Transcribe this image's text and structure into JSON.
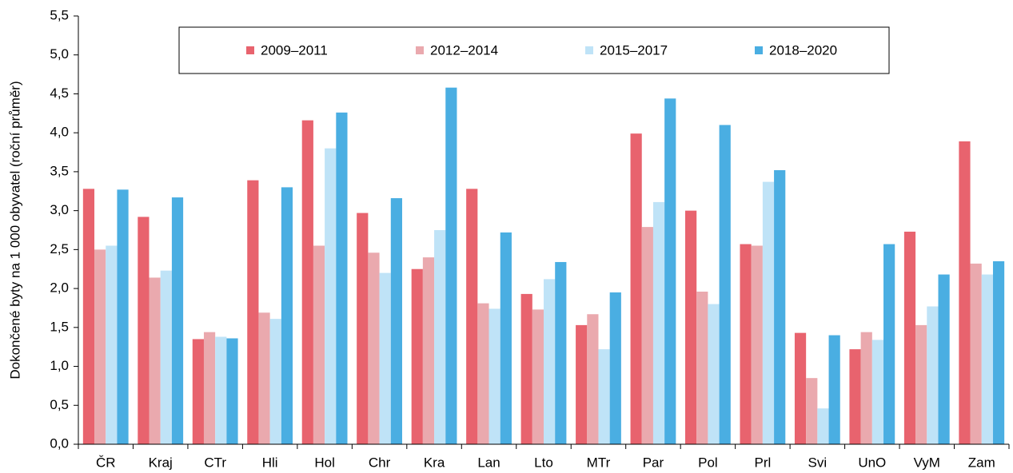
{
  "chart_data": {
    "type": "bar",
    "y_label": "Dokončené byty na 1 000 obyvatel (roční průměr)",
    "categories": [
      "ČR",
      "Kraj",
      "CTr",
      "Hli",
      "Hol",
      "Chr",
      "Kra",
      "Lan",
      "Lto",
      "MTr",
      "Par",
      "Pol",
      "Prl",
      "Svi",
      "UnO",
      "VyM",
      "Zam"
    ],
    "series": [
      {
        "name": "2009–2011",
        "color": "#e8636e",
        "values": [
          3.28,
          2.92,
          1.35,
          3.39,
          4.16,
          2.97,
          2.25,
          3.28,
          1.93,
          1.53,
          3.99,
          3.0,
          2.57,
          1.43,
          1.22,
          2.73,
          3.89
        ]
      },
      {
        "name": "2012–2014",
        "color": "#eaa9ae",
        "values": [
          2.5,
          2.14,
          1.44,
          1.69,
          2.55,
          2.46,
          2.4,
          1.81,
          1.73,
          1.67,
          2.79,
          1.96,
          2.55,
          0.85,
          1.44,
          1.53,
          2.32
        ]
      },
      {
        "name": "2015–2017",
        "color": "#bfe3f7",
        "values": [
          2.55,
          2.23,
          1.38,
          1.61,
          3.8,
          2.2,
          2.75,
          1.74,
          2.12,
          1.22,
          3.11,
          1.8,
          3.37,
          0.46,
          1.34,
          1.77,
          2.18
        ]
      },
      {
        "name": "2018–2020",
        "color": "#4aaee2",
        "values": [
          3.27,
          3.17,
          1.36,
          3.3,
          4.26,
          3.16,
          4.58,
          2.72,
          2.34,
          1.95,
          4.44,
          4.1,
          3.52,
          1.4,
          2.57,
          2.18,
          2.35
        ]
      }
    ],
    "ylim": [
      0,
      5.5
    ],
    "yticks": [
      {
        "value": 0,
        "label": "0,0"
      },
      {
        "value": 0.5,
        "label": "0,5"
      },
      {
        "value": 1,
        "label": "1,0"
      },
      {
        "value": 1.5,
        "label": "1,5"
      },
      {
        "value": 2,
        "label": "2,0"
      },
      {
        "value": 2.5,
        "label": "2,5"
      },
      {
        "value": 3,
        "label": "3,0"
      },
      {
        "value": 3.5,
        "label": "3,5"
      },
      {
        "value": 4,
        "label": "4,0"
      },
      {
        "value": 4.5,
        "label": "4,5"
      },
      {
        "value": 5,
        "label": "5,0"
      },
      {
        "value": 5.5,
        "label": "5,5"
      }
    ],
    "grid": false,
    "legend": "top"
  }
}
